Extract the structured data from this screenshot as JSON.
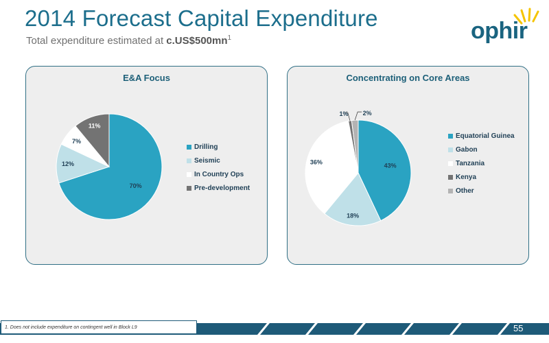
{
  "header": {
    "title": "2014 Forecast Capital Expenditure",
    "subtitle_prefix": "Total expenditure estimated at ",
    "subtitle_value": "c.US$500mn",
    "subtitle_footnote": "1"
  },
  "logo": {
    "text": "ophir",
    "color": "#1a6480",
    "sun_color": "#f5c400"
  },
  "chart_data": [
    {
      "type": "pie",
      "title": "E&A Focus",
      "categories": [
        "Drilling",
        "Seismic",
        "In Country Ops",
        "Pre-development"
      ],
      "values": [
        70,
        12,
        7,
        11
      ],
      "labels": [
        "70%",
        "12%",
        "7%",
        "11%"
      ],
      "colors": [
        "#2aa3c2",
        "#bfe0e8",
        "#ffffff",
        "#737373"
      ],
      "legend": "right",
      "start_angle": 0
    },
    {
      "type": "pie",
      "title": "Concentrating on Core Areas",
      "categories": [
        "Equatorial Guinea",
        "Gabon",
        "Tanzania",
        "Kenya",
        "Other"
      ],
      "values": [
        43,
        18,
        36,
        1,
        2
      ],
      "labels": [
        "43%",
        "18%",
        "36%",
        "1%",
        "2%"
      ],
      "colors": [
        "#2aa3c2",
        "#bfe0e8",
        "#ffffff",
        "#737373",
        "#b3b3b3"
      ],
      "legend": "right",
      "start_angle": 0
    }
  ],
  "footer": {
    "note": "1. Does not include expenditure on contingent well in Block L9",
    "page_number": "55"
  }
}
